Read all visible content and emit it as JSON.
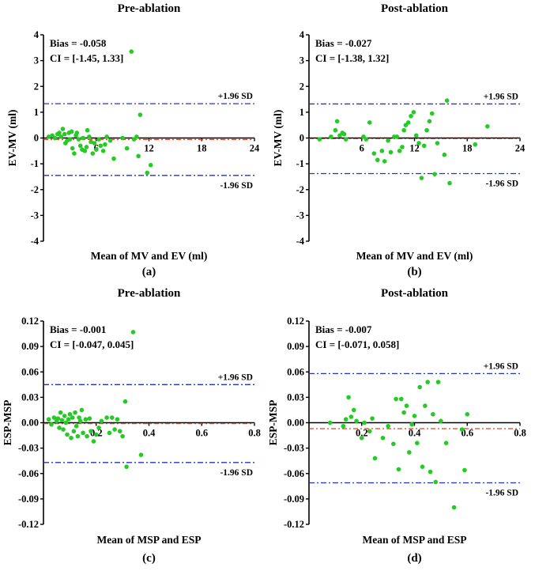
{
  "chart_data": [
    {
      "type": "scatter",
      "title": "Pre-ablation",
      "panel_label": "(a)",
      "xlabel": "Mean of MV and EV  (ml)",
      "ylabel": "EV-MV (ml)",
      "xlim": [
        0,
        24
      ],
      "ylim": [
        -4,
        4
      ],
      "xticks": [
        6,
        12,
        18,
        24
      ],
      "xtick_labels": [
        "6",
        "12",
        "18",
        "24"
      ],
      "yticks": [
        -4,
        -3,
        -2,
        -1,
        0,
        1,
        2,
        3,
        4
      ],
      "ytick_labels": [
        "-4",
        "-3",
        "-2",
        "-1",
        "0",
        "1",
        "2",
        "3",
        "4"
      ],
      "bias_text": "Bias = -0.058",
      "ci_text": "CI = [-1.45, 1.33]",
      "bias": -0.058,
      "upper_loa": 1.33,
      "lower_loa": -1.45,
      "upper_label": "+1.96 SD",
      "lower_label": "-1.96 SD",
      "points": [
        [
          0.6,
          0.05
        ],
        [
          1.0,
          0.1
        ],
        [
          1.3,
          0.0
        ],
        [
          1.6,
          0.15
        ],
        [
          1.8,
          0.2
        ],
        [
          2.0,
          0.05
        ],
        [
          2.2,
          0.35
        ],
        [
          2.4,
          0.15
        ],
        [
          2.5,
          -0.2
        ],
        [
          2.7,
          -0.1
        ],
        [
          2.9,
          0.2
        ],
        [
          3.0,
          -0.05
        ],
        [
          3.2,
          0.25
        ],
        [
          3.3,
          -0.4
        ],
        [
          3.5,
          -0.6
        ],
        [
          3.7,
          0.1
        ],
        [
          3.8,
          0.2
        ],
        [
          4.0,
          -0.05
        ],
        [
          4.2,
          -0.3
        ],
        [
          4.4,
          -0.45
        ],
        [
          4.5,
          0.0
        ],
        [
          4.7,
          -0.5
        ],
        [
          4.9,
          -0.35
        ],
        [
          5.0,
          0.3
        ],
        [
          5.2,
          0.05
        ],
        [
          5.4,
          -0.15
        ],
        [
          5.6,
          -0.6
        ],
        [
          5.8,
          -0.2
        ],
        [
          6.0,
          -0.45
        ],
        [
          6.3,
          -0.05
        ],
        [
          6.5,
          -0.3
        ],
        [
          6.8,
          -0.5
        ],
        [
          7.0,
          -0.25
        ],
        [
          7.2,
          0.05
        ],
        [
          7.6,
          -0.1
        ],
        [
          8.0,
          -0.8
        ],
        [
          9.0,
          0.0
        ],
        [
          9.5,
          -0.4
        ],
        [
          10.0,
          3.35
        ],
        [
          10.3,
          -0.05
        ],
        [
          10.6,
          0.05
        ],
        [
          10.8,
          -0.7
        ],
        [
          11.0,
          0.9
        ],
        [
          11.8,
          -1.35
        ],
        [
          12.2,
          -1.05
        ]
      ]
    },
    {
      "type": "scatter",
      "title": "Post-ablation",
      "panel_label": "(b)",
      "xlabel": "Mean of MV and EV  (ml)",
      "ylabel": "EV-MV (ml)",
      "xlim": [
        0,
        24
      ],
      "ylim": [
        -4,
        4
      ],
      "xticks": [
        6,
        12,
        18,
        24
      ],
      "xtick_labels": [
        "6",
        "12",
        "18",
        "24"
      ],
      "yticks": [
        -4,
        -3,
        -2,
        -1,
        0,
        1,
        2,
        3,
        4
      ],
      "ytick_labels": [
        "-4",
        "-3",
        "-2",
        "-1",
        "0",
        "1",
        "2",
        "3",
        "4"
      ],
      "bias_text": "Bias = -0.027",
      "ci_text": "CI = [-1.38, 1.32]",
      "bias": -0.027,
      "upper_loa": 1.32,
      "lower_loa": -1.38,
      "upper_label": "+1.96 SD",
      "lower_label": "-1.96 SD",
      "points": [
        [
          1.2,
          -0.05
        ],
        [
          2.5,
          0.05
        ],
        [
          3.0,
          0.3
        ],
        [
          3.2,
          0.65
        ],
        [
          3.5,
          0.1
        ],
        [
          3.8,
          0.2
        ],
        [
          4.0,
          0.15
        ],
        [
          4.2,
          -0.05
        ],
        [
          6.2,
          0.05
        ],
        [
          6.5,
          -0.05
        ],
        [
          6.9,
          0.6
        ],
        [
          7.4,
          -0.6
        ],
        [
          7.8,
          -0.85
        ],
        [
          8.3,
          -0.5
        ],
        [
          8.6,
          -0.9
        ],
        [
          9.0,
          -0.1
        ],
        [
          9.3,
          -0.55
        ],
        [
          9.7,
          0.05
        ],
        [
          10.0,
          0.05
        ],
        [
          10.3,
          -0.5
        ],
        [
          10.6,
          -0.35
        ],
        [
          10.8,
          0.3
        ],
        [
          11.0,
          0.5
        ],
        [
          11.3,
          0.6
        ],
        [
          11.6,
          0.85
        ],
        [
          11.9,
          1.0
        ],
        [
          12.2,
          0.1
        ],
        [
          12.5,
          -0.2
        ],
        [
          12.8,
          -1.55
        ],
        [
          13.1,
          -0.3
        ],
        [
          13.4,
          0.3
        ],
        [
          13.7,
          0.65
        ],
        [
          14.0,
          0.95
        ],
        [
          14.3,
          -1.4
        ],
        [
          14.6,
          -0.2
        ],
        [
          15.4,
          -0.65
        ],
        [
          15.7,
          1.45
        ],
        [
          16.0,
          -1.75
        ],
        [
          18.9,
          -0.25
        ],
        [
          20.3,
          0.45
        ]
      ]
    },
    {
      "type": "scatter",
      "title": "Pre-ablation",
      "panel_label": "(c)",
      "xlabel": "Mean of MSP and ESP",
      "ylabel": "ESP-MSP",
      "xlim": [
        0,
        0.8
      ],
      "ylim": [
        -0.12,
        0.12
      ],
      "xticks": [
        0.2,
        0.4,
        0.6,
        0.8
      ],
      "xtick_labels": [
        "0.2",
        "0.4",
        "0.6",
        "0.8"
      ],
      "yticks": [
        -0.12,
        -0.09,
        -0.06,
        -0.03,
        0,
        0.03,
        0.06,
        0.09,
        0.12
      ],
      "ytick_labels": [
        "-0.12",
        "-0.09",
        "-0.06",
        "-0.03",
        "0.00",
        "0.03",
        "0.06",
        "0.09",
        "0.12"
      ],
      "bias_text": "Bias = -0.001",
      "ci_text": "CI = [-0.047, 0.045]",
      "bias": -0.001,
      "upper_loa": 0.045,
      "lower_loa": -0.047,
      "upper_label": "+1.96 SD",
      "lower_label": "-1.96 SD",
      "points": [
        [
          0.02,
          0.004
        ],
        [
          0.03,
          -0.002
        ],
        [
          0.04,
          0.006
        ],
        [
          0.05,
          0.002
        ],
        [
          0.055,
          0.005
        ],
        [
          0.06,
          -0.006
        ],
        [
          0.065,
          0.012
        ],
        [
          0.07,
          0.003
        ],
        [
          0.075,
          -0.008
        ],
        [
          0.08,
          0.008
        ],
        [
          0.085,
          0.0
        ],
        [
          0.09,
          -0.014
        ],
        [
          0.095,
          0.004
        ],
        [
          0.1,
          0.01
        ],
        [
          0.105,
          -0.018
        ],
        [
          0.11,
          0.006
        ],
        [
          0.115,
          -0.01
        ],
        [
          0.12,
          0.012
        ],
        [
          0.125,
          -0.004
        ],
        [
          0.13,
          -0.016
        ],
        [
          0.135,
          0.006
        ],
        [
          0.14,
          0.002
        ],
        [
          0.145,
          0.015
        ],
        [
          0.15,
          -0.012
        ],
        [
          0.16,
          0.004
        ],
        [
          0.165,
          -0.016
        ],
        [
          0.175,
          0.005
        ],
        [
          0.18,
          -0.01
        ],
        [
          0.19,
          -0.022
        ],
        [
          0.2,
          -0.014
        ],
        [
          0.21,
          -0.006
        ],
        [
          0.22,
          0.002
        ],
        [
          0.24,
          0.006
        ],
        [
          0.25,
          -0.012
        ],
        [
          0.26,
          0.006
        ],
        [
          0.27,
          -0.008
        ],
        [
          0.28,
          0.004
        ],
        [
          0.29,
          -0.01
        ],
        [
          0.3,
          -0.016
        ],
        [
          0.31,
          0.025
        ],
        [
          0.315,
          -0.052
        ],
        [
          0.34,
          0.107
        ],
        [
          0.37,
          -0.038
        ]
      ]
    },
    {
      "type": "scatter",
      "title": "Post-ablation",
      "panel_label": "(d)",
      "xlabel": "Mean of MSP and ESP",
      "ylabel": "ESP-MSP",
      "xlim": [
        0,
        0.8
      ],
      "ylim": [
        -0.12,
        0.12
      ],
      "xticks": [
        0.2,
        0.4,
        0.6,
        0.8
      ],
      "xtick_labels": [
        "0.2",
        "0.4",
        "0.6",
        "0.8"
      ],
      "yticks": [
        -0.12,
        -0.09,
        -0.06,
        -0.03,
        0,
        0.03,
        0.06,
        0.09,
        0.12
      ],
      "ytick_labels": [
        "-0.12",
        "-0.09",
        "-0.06",
        "-0.03",
        "0.00",
        "0.03",
        "0.06",
        "0.09",
        "0.12"
      ],
      "bias_text": "Bias = -0.007",
      "ci_text": "CI = [-0.071, 0.058]",
      "bias": -0.007,
      "upper_loa": 0.058,
      "lower_loa": -0.071,
      "upper_label": "+1.96 SD",
      "lower_label": "-1.96 SD",
      "points": [
        [
          0.08,
          0.0
        ],
        [
          0.13,
          -0.004
        ],
        [
          0.14,
          0.004
        ],
        [
          0.15,
          0.03
        ],
        [
          0.16,
          0.007
        ],
        [
          0.17,
          0.015
        ],
        [
          0.18,
          0.002
        ],
        [
          0.2,
          -0.018
        ],
        [
          0.21,
          0.0
        ],
        [
          0.23,
          -0.01
        ],
        [
          0.24,
          0.005
        ],
        [
          0.25,
          -0.042
        ],
        [
          0.28,
          -0.018
        ],
        [
          0.3,
          -0.004
        ],
        [
          0.32,
          -0.025
        ],
        [
          0.33,
          0.028
        ],
        [
          0.34,
          -0.055
        ],
        [
          0.35,
          0.028
        ],
        [
          0.36,
          0.012
        ],
        [
          0.37,
          0.02
        ],
        [
          0.38,
          -0.035
        ],
        [
          0.39,
          -0.002
        ],
        [
          0.4,
          0.008
        ],
        [
          0.41,
          -0.024
        ],
        [
          0.42,
          0.042
        ],
        [
          0.43,
          -0.052
        ],
        [
          0.44,
          0.02
        ],
        [
          0.45,
          0.048
        ],
        [
          0.46,
          -0.058
        ],
        [
          0.47,
          0.01
        ],
        [
          0.48,
          -0.07
        ],
        [
          0.49,
          0.048
        ],
        [
          0.5,
          0.002
        ],
        [
          0.52,
          -0.024
        ],
        [
          0.55,
          -0.1
        ],
        [
          0.58,
          -0.008
        ],
        [
          0.59,
          -0.056
        ],
        [
          0.6,
          0.01
        ]
      ]
    }
  ],
  "colors": {
    "points": "#22cc22",
    "loa": "#2233cc",
    "bias": "#dd4422",
    "axis": "#000000"
  }
}
